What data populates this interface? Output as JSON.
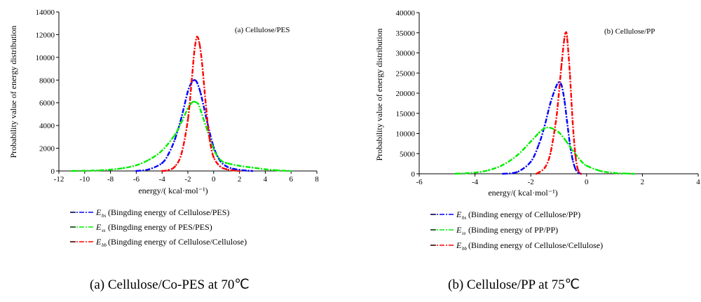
{
  "chart_data": [
    {
      "type": "line",
      "title": "(a) Cellulose/PES",
      "caption": "(a) Cellulose/Co-PES at 70℃",
      "xlabel": "energy/(  kcal·mol⁻¹)",
      "ylabel": "Probability value of energy distribution",
      "xlim": [
        -12,
        8
      ],
      "ylim": [
        0,
        14000
      ],
      "xticks": [
        "-12",
        "-10",
        "-8",
        "-6",
        "-4",
        "-2",
        "0",
        "2",
        "4",
        "6",
        "8"
      ],
      "yticks": [
        "0",
        "2000",
        "4000",
        "6000",
        "8000",
        "10000",
        "12000",
        "14000"
      ],
      "grid": false,
      "legend_position": "below",
      "series": [
        {
          "name": "(Bingding energy of Cellulose/PES)",
          "symbol": "E",
          "sub": "bs",
          "color": "#0000ff",
          "x": [
            -6,
            -5,
            -4,
            -3.5,
            -3,
            -2.5,
            -2,
            -1.7,
            -1.5,
            -1.3,
            -1,
            -0.5,
            0,
            0.5,
            1,
            1.5,
            2,
            2.5,
            3
          ],
          "y": [
            0,
            150,
            700,
            1500,
            2800,
            4700,
            7000,
            7800,
            8000,
            7800,
            6800,
            4300,
            2100,
            900,
            400,
            200,
            100,
            40,
            0
          ]
        },
        {
          "name": "(Bingding energy of PES/PES)",
          "symbol": "E",
          "sub": "ss",
          "color": "#00ee00",
          "x": [
            -11,
            -10,
            -9,
            -8,
            -7,
            -6,
            -5,
            -4,
            -3,
            -2.5,
            -2,
            -1.7,
            -1.5,
            -1.2,
            -1,
            -0.5,
            0,
            0.5,
            1,
            2,
            3,
            4,
            5,
            6
          ],
          "y": [
            0,
            20,
            50,
            120,
            250,
            500,
            1000,
            1800,
            3200,
            4300,
            5500,
            6000,
            6100,
            5900,
            5300,
            3600,
            1900,
            1000,
            700,
            450,
            300,
            150,
            50,
            0
          ]
        },
        {
          "name": "(Bingding energy of Cellulose/Cellulose)",
          "symbol": "E",
          "sub": "bb",
          "color": "#ff0000",
          "x": [
            -4,
            -3.5,
            -3,
            -2.5,
            -2,
            -1.7,
            -1.5,
            -1.3,
            -1.1,
            -0.9,
            -0.7,
            -0.5,
            -0.3,
            0,
            0.5,
            1,
            1.5,
            2
          ],
          "y": [
            0,
            80,
            400,
            1500,
            4500,
            8000,
            10500,
            11800,
            11200,
            9500,
            7000,
            4600,
            2700,
            1200,
            400,
            150,
            50,
            0
          ]
        }
      ]
    },
    {
      "type": "line",
      "title": "(b)  Cellulose/PP",
      "caption": "(b) Cellulose/PP at 75℃",
      "xlabel": "energy/(  kcal·mol⁻¹)",
      "ylabel": "Probability value of  energy distribution",
      "xlim": [
        -6,
        4
      ],
      "ylim": [
        0,
        40000
      ],
      "xticks": [
        "-6",
        "-4",
        "-2",
        "0",
        "2",
        "4"
      ],
      "yticks": [
        "0",
        "5000",
        "10000",
        "15000",
        "20000",
        "25000",
        "30000",
        "35000",
        "40000"
      ],
      "grid": false,
      "legend_position": "below",
      "series": [
        {
          "name": "(Binding energy of Cellulose/PP)",
          "symbol": "E",
          "sub": "bs",
          "color": "#0000ff",
          "x": [
            -3,
            -2.5,
            -2,
            -1.7,
            -1.5,
            -1.3,
            -1.1,
            -1.0,
            -0.9,
            -0.8,
            -0.7,
            -0.6,
            -0.5,
            -0.4,
            -0.3,
            -0.2
          ],
          "y": [
            0,
            400,
            3000,
            7500,
            12000,
            17500,
            21500,
            22700,
            22000,
            18500,
            13000,
            7500,
            3500,
            1200,
            300,
            0
          ]
        },
        {
          "name": "(Binding energy of PP/PP)",
          "symbol": "E",
          "sub": "ss",
          "color": "#00ee00",
          "x": [
            -4.7,
            -4,
            -3.5,
            -3,
            -2.5,
            -2,
            -1.7,
            -1.5,
            -1.3,
            -1,
            -0.7,
            -0.5,
            -0.2,
            0,
            0.5,
            1,
            1.5,
            1.7
          ],
          "y": [
            0,
            300,
            900,
            2200,
            4500,
            8000,
            10200,
            11300,
            11400,
            10300,
            7800,
            5800,
            3200,
            2000,
            700,
            200,
            50,
            0
          ]
        },
        {
          "name": "(Binding energy of Cellulose/Cellulose)",
          "symbol": "E",
          "sub": "bb",
          "color": "#ff0000",
          "x": [
            -1.8,
            -1.5,
            -1.3,
            -1.1,
            -1.0,
            -0.9,
            -0.8,
            -0.75,
            -0.7,
            -0.6,
            -0.5,
            -0.4,
            -0.3,
            -0.2
          ],
          "y": [
            0,
            1500,
            5000,
            13000,
            19500,
            27000,
            33500,
            35000,
            34000,
            25000,
            13000,
            4500,
            800,
            0
          ]
        }
      ]
    }
  ]
}
